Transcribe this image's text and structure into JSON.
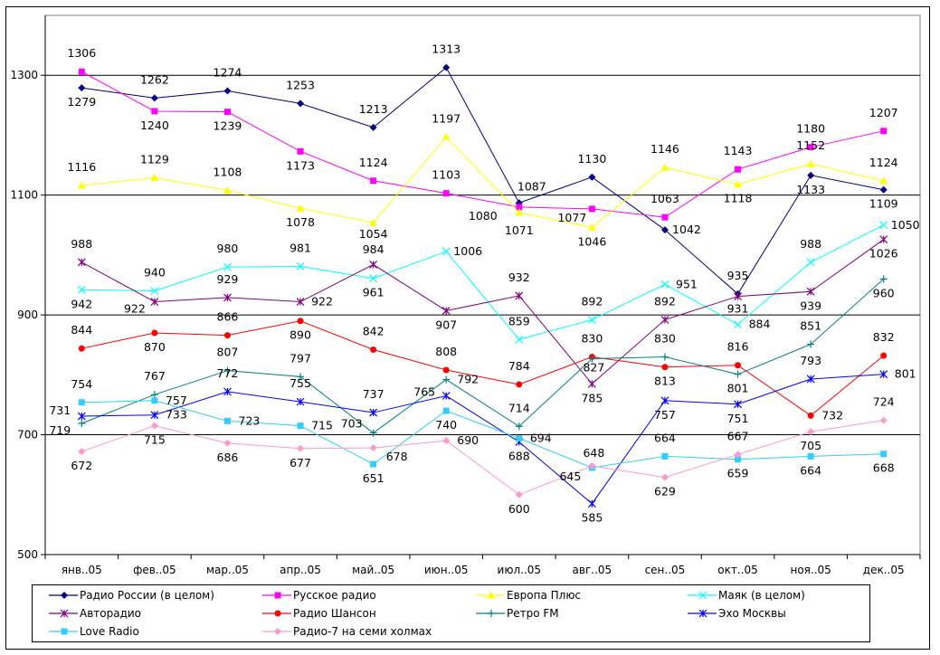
{
  "chart_data": {
    "type": "line",
    "title": "",
    "xlabel": "",
    "ylabel": "",
    "ylim": [
      500,
      1400
    ],
    "yticks": [
      500,
      700,
      900,
      1100,
      1300
    ],
    "grid": true,
    "legend_position": "bottom",
    "categories": [
      "янв..05",
      "фев..05",
      "мар..05",
      "апр..05",
      "май..05",
      "июн..05",
      "июл..05",
      "авг..05",
      "сен..05",
      "окт..05",
      "ноя..05",
      "дек..05"
    ],
    "series": [
      {
        "name": "Радио России (в целом)",
        "color": "#000080",
        "marker": "diamond",
        "values": [
          1279,
          1262,
          1274,
          1253,
          1213,
          1313,
          1087,
          1130,
          1042,
          935,
          1133,
          1109
        ]
      },
      {
        "name": "Русское радио",
        "color": "#FF00FF",
        "marker": "square",
        "values": [
          1306,
          1240,
          1239,
          1173,
          1124,
          1103,
          1080,
          1077,
          1063,
          1143,
          1180,
          1207
        ]
      },
      {
        "name": "Европа Плюс",
        "color": "#FFFF00",
        "marker": "triangle",
        "values": [
          1116,
          1129,
          1108,
          1078,
          1054,
          1197,
          1071,
          1046,
          1146,
          1118,
          1152,
          1124
        ]
      },
      {
        "name": "Маяк  (в целом)",
        "color": "#00FFFF",
        "marker": "x",
        "values": [
          942,
          940,
          980,
          981,
          961,
          1006,
          859,
          892,
          951,
          884,
          988,
          1050
        ]
      },
      {
        "name": "Авторадио",
        "color": "#800080",
        "marker": "star",
        "values": [
          988,
          922,
          929,
          922,
          984,
          907,
          932,
          785,
          892,
          931,
          939,
          1026
        ]
      },
      {
        "name": "Радио Шансон",
        "color": "#FF0000",
        "marker": "circle",
        "values": [
          844,
          870,
          866,
          890,
          842,
          808,
          784,
          830,
          813,
          816,
          732,
          832
        ]
      },
      {
        "name": "Ретро FM",
        "color": "#008080",
        "marker": "plus",
        "values": [
          719,
          767,
          807,
          797,
          703,
          792,
          714,
          827,
          830,
          801,
          851,
          960
        ]
      },
      {
        "name": "Эхо Москвы",
        "color": "#0000FF",
        "marker": "star",
        "values": [
          731,
          733,
          772,
          755,
          737,
          765,
          688,
          585,
          757,
          751,
          793,
          801
        ]
      },
      {
        "name": "Love Radio",
        "color": "#33CCFF",
        "marker": "square",
        "values": [
          754,
          757,
          723,
          715,
          651,
          740,
          694,
          645,
          664,
          659,
          664,
          668
        ]
      },
      {
        "name": "Радио-7 на семи холмах",
        "color": "#FF99CC",
        "marker": "diamond",
        "values": [
          672,
          715,
          686,
          677,
          678,
          690,
          600,
          648,
          629,
          667,
          705,
          724
        ]
      }
    ]
  }
}
